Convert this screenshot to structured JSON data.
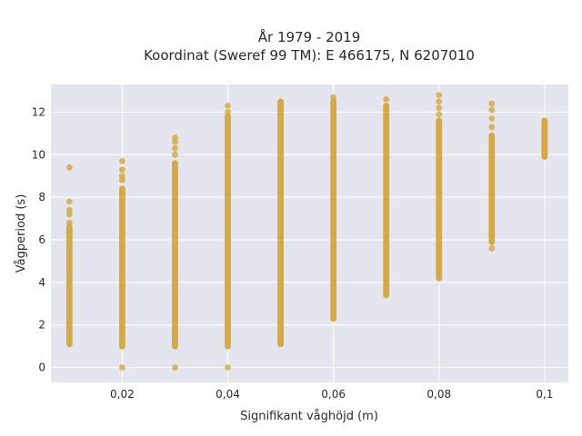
{
  "chart_data": {
    "type": "scatter",
    "title": "År 1979 - 2019",
    "subtitle": "Koordinat (Sweref 99 TM): E 466175, N 6207010",
    "xlabel": "Signifikant våghöjd (m)",
    "ylabel": "Vågperiod (s)",
    "xlim": [
      0.0065,
      0.1045
    ],
    "ylim": [
      -0.7,
      13.3
    ],
    "x_ticks": [
      0.02,
      0.04,
      0.06,
      0.08,
      0.1
    ],
    "x_tick_labels": [
      "0,02",
      "0,04",
      "0,06",
      "0,08",
      "0,1"
    ],
    "y_ticks": [
      0,
      2,
      4,
      6,
      8,
      10,
      12
    ],
    "y_tick_labels": [
      "0",
      "2",
      "4",
      "6",
      "8",
      "10",
      "12"
    ],
    "grid": true,
    "marker_color": "#D4A32A",
    "background_color": "#E5E5EF",
    "series": [
      {
        "columns": [
          {
            "x": 0.01,
            "ymin": 1.1,
            "ymax": 6.6,
            "outliers": [
              6.8,
              7.2,
              7.4,
              7.8,
              9.4
            ]
          },
          {
            "x": 0.02,
            "ymin": 1.0,
            "ymax": 8.4,
            "outliers": [
              0,
              8.8,
              9.0,
              9.3,
              9.7
            ]
          },
          {
            "x": 0.03,
            "ymin": 1.0,
            "ymax": 9.6,
            "outliers": [
              0,
              10.0,
              10.3,
              10.6,
              10.8
            ]
          },
          {
            "x": 0.04,
            "ymin": 1.0,
            "ymax": 11.8,
            "outliers": [
              0,
              12.0,
              12.3
            ]
          },
          {
            "x": 0.05,
            "ymin": 1.1,
            "ymax": 12.5,
            "outliers": []
          },
          {
            "x": 0.06,
            "ymin": 2.3,
            "ymax": 12.5,
            "outliers": [
              12.7
            ]
          },
          {
            "x": 0.07,
            "ymin": 3.4,
            "ymax": 12.3,
            "outliers": [
              12.6
            ]
          },
          {
            "x": 0.08,
            "ymin": 4.2,
            "ymax": 11.6,
            "outliers": [
              11.9,
              12.2,
              12.5,
              12.8
            ]
          },
          {
            "x": 0.09,
            "ymin": 5.9,
            "ymax": 10.9,
            "outliers": [
              5.6,
              11.3,
              11.7,
              12.1,
              12.4
            ]
          },
          {
            "x": 0.1,
            "ymin": 9.9,
            "ymax": 11.6,
            "outliers": []
          }
        ]
      }
    ]
  }
}
